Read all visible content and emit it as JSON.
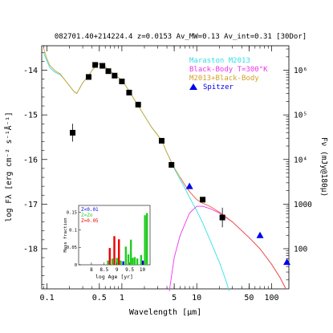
{
  "chart_data": {
    "type": "scatter",
    "title": "082701.40+214224.4  z=0.0153  Av_MW=0.13  Av_int=0.31  [30Dor]",
    "xlabel": "Wavelength [μm]",
    "ylabel": "log Fλ [erg cm⁻² s⁻¹Å⁻¹]",
    "ylabel_right": "Fν (mJy@180μ)",
    "x_scale": "log",
    "xlim": [
      0.085,
      170
    ],
    "ylim": [
      -18.9,
      -13.45
    ],
    "x_ticks": [
      0.1,
      0.5,
      1,
      5,
      10,
      50,
      100
    ],
    "x_tick_labels": [
      "0.1",
      "0.5",
      "1",
      "5",
      "10",
      "50",
      "100"
    ],
    "y_ticks": [
      -14,
      -15,
      -16,
      -17,
      -18
    ],
    "y_tick_labels": [
      "-14",
      "-15",
      "-16",
      "-17",
      "-18"
    ],
    "right_tick_values": [
      1000000,
      100000,
      10000,
      1000,
      100
    ],
    "right_tick_labels": [
      "10⁶",
      "10⁵",
      "10⁴",
      "1000",
      "100"
    ],
    "legend": [
      "Maraston M2013",
      "Black-Body T=300°K",
      "M2013+Black-Body",
      "Spitzer"
    ],
    "legend_position": "top-right",
    "colors": {
      "maraston": "#33e0e6",
      "blackbody": "#ee33ee",
      "combined": "#d4a028",
      "combined_ir": "#ee5533",
      "spitzer": "#0000ee",
      "observed": "#000000"
    },
    "observed": [
      {
        "x": 0.22,
        "y": -15.4,
        "err": 0.2
      },
      {
        "x": 0.36,
        "y": -14.15,
        "err": 0
      },
      {
        "x": 0.44,
        "y": -13.88,
        "err": 0
      },
      {
        "x": 0.55,
        "y": -13.9,
        "err": 0
      },
      {
        "x": 0.66,
        "y": -14.02,
        "err": 0
      },
      {
        "x": 0.8,
        "y": -14.12,
        "err": 0
      },
      {
        "x": 1.0,
        "y": -14.25,
        "err": 0
      },
      {
        "x": 1.25,
        "y": -14.5,
        "err": 0
      },
      {
        "x": 1.65,
        "y": -14.77,
        "err": 0
      },
      {
        "x": 3.4,
        "y": -15.58,
        "err": 0
      },
      {
        "x": 4.6,
        "y": -16.12,
        "err": 0
      },
      {
        "x": 12,
        "y": -16.9,
        "err": 0
      },
      {
        "x": 22,
        "y": -17.3,
        "err": 0.22
      }
    ],
    "spitzer": [
      {
        "x": 8.0,
        "y": -16.6
      },
      {
        "x": 70,
        "y": -17.7
      },
      {
        "x": 160,
        "y": -18.3
      }
    ],
    "maraston_curve": [
      [
        0.09,
        -13.6
      ],
      [
        0.1,
        -13.8
      ],
      [
        0.11,
        -13.95
      ],
      [
        0.13,
        -14.05
      ],
      [
        0.15,
        -14.1
      ],
      [
        0.17,
        -14.2
      ],
      [
        0.2,
        -14.35
      ],
      [
        0.23,
        -14.48
      ],
      [
        0.25,
        -14.52
      ],
      [
        0.27,
        -14.42
      ],
      [
        0.3,
        -14.28
      ],
      [
        0.35,
        -14.15
      ],
      [
        0.4,
        -14.0
      ],
      [
        0.45,
        -13.9
      ],
      [
        0.5,
        -13.85
      ],
      [
        0.6,
        -13.92
      ],
      [
        0.7,
        -14.02
      ],
      [
        0.8,
        -14.1
      ],
      [
        1.0,
        -14.22
      ],
      [
        1.2,
        -14.42
      ],
      [
        1.5,
        -14.68
      ],
      [
        2.0,
        -15.02
      ],
      [
        2.5,
        -15.28
      ],
      [
        3.0,
        -15.45
      ],
      [
        3.5,
        -15.62
      ],
      [
        4.0,
        -15.85
      ],
      [
        5.0,
        -16.2
      ],
      [
        6.0,
        -16.45
      ],
      [
        7.0,
        -16.65
      ],
      [
        8.0,
        -16.85
      ],
      [
        10,
        -17.15
      ],
      [
        12,
        -17.42
      ],
      [
        15,
        -17.8
      ],
      [
        20,
        -18.3
      ],
      [
        25,
        -18.75
      ],
      [
        27,
        -18.95
      ]
    ],
    "blackbody_curve": [
      [
        4.3,
        -18.95
      ],
      [
        5.0,
        -18.2
      ],
      [
        6.0,
        -17.7
      ],
      [
        8.0,
        -17.2
      ],
      [
        10,
        -17.05
      ],
      [
        12,
        -17.05
      ],
      [
        15,
        -17.1
      ],
      [
        20,
        -17.2
      ],
      [
        30,
        -17.4
      ],
      [
        50,
        -17.75
      ],
      [
        70,
        -18.0
      ],
      [
        100,
        -18.35
      ],
      [
        130,
        -18.65
      ],
      [
        155,
        -18.9
      ]
    ],
    "combined_curve": [
      [
        0.09,
        -13.5
      ],
      [
        0.1,
        -13.75
      ],
      [
        0.11,
        -13.9
      ],
      [
        0.13,
        -14.02
      ],
      [
        0.15,
        -14.08
      ],
      [
        0.17,
        -14.2
      ],
      [
        0.2,
        -14.35
      ],
      [
        0.23,
        -14.48
      ],
      [
        0.25,
        -14.52
      ],
      [
        0.27,
        -14.42
      ],
      [
        0.3,
        -14.28
      ],
      [
        0.35,
        -14.15
      ],
      [
        0.4,
        -14.0
      ],
      [
        0.45,
        -13.9
      ],
      [
        0.5,
        -13.85
      ],
      [
        0.6,
        -13.92
      ],
      [
        0.7,
        -14.02
      ],
      [
        0.8,
        -14.1
      ],
      [
        1.0,
        -14.22
      ],
      [
        1.2,
        -14.42
      ],
      [
        1.5,
        -14.68
      ],
      [
        2.0,
        -15.02
      ],
      [
        2.5,
        -15.28
      ],
      [
        3.0,
        -15.45
      ],
      [
        3.5,
        -15.62
      ],
      [
        4.0,
        -15.85
      ],
      [
        5.0,
        -16.18
      ],
      [
        6.0,
        -16.4
      ],
      [
        7.0,
        -16.58
      ],
      [
        8.0,
        -16.72
      ],
      [
        10,
        -16.9
      ],
      [
        12,
        -16.98
      ],
      [
        15,
        -17.05
      ],
      [
        20,
        -17.18
      ],
      [
        30,
        -17.4
      ],
      [
        50,
        -17.75
      ],
      [
        70,
        -18.0
      ],
      [
        100,
        -18.35
      ],
      [
        130,
        -18.65
      ],
      [
        155,
        -18.9
      ]
    ],
    "inset": {
      "xlabel": "log Age [yr]",
      "ylabel": "Mass fraction",
      "xlim": [
        7.5,
        10.3
      ],
      "ylim": [
        0,
        0.17
      ],
      "x_ticks": [
        8,
        8.5,
        9,
        9.5,
        10
      ],
      "x_tick_labels": [
        "8",
        "8.5",
        "9",
        "9.5",
        "10"
      ],
      "y_ticks": [
        0,
        0.05,
        0.1,
        0.15
      ],
      "y_tick_labels": [
        "0",
        "0.05",
        "0.1",
        "0.15"
      ],
      "legend": [
        {
          "label": "Z<0.01",
          "color": "#0000ee"
        },
        {
          "label": "Z=Z⊙",
          "color": "#22cc22"
        },
        {
          "label": "Z=0.05",
          "color": "#ee0000"
        }
      ],
      "bars": [
        {
          "x": 8.65,
          "y": 0.012,
          "color": "#22cc22"
        },
        {
          "x": 8.72,
          "y": 0.048,
          "color": "#ee0000"
        },
        {
          "x": 8.82,
          "y": 0.018,
          "color": "#22cc22"
        },
        {
          "x": 8.9,
          "y": 0.082,
          "color": "#ee0000"
        },
        {
          "x": 9.0,
          "y": 0.02,
          "color": "#22cc22"
        },
        {
          "x": 9.08,
          "y": 0.073,
          "color": "#ee0000"
        },
        {
          "x": 9.15,
          "y": 0.012,
          "color": "#22cc22"
        },
        {
          "x": 9.25,
          "y": 0.01,
          "color": "#0000ee"
        },
        {
          "x": 9.35,
          "y": 0.052,
          "color": "#22cc22"
        },
        {
          "x": 9.45,
          "y": 0.03,
          "color": "#22cc22"
        },
        {
          "x": 9.55,
          "y": 0.072,
          "color": "#22cc22"
        },
        {
          "x": 9.62,
          "y": 0.02,
          "color": "#22cc22"
        },
        {
          "x": 9.7,
          "y": 0.022,
          "color": "#22cc22"
        },
        {
          "x": 9.8,
          "y": 0.018,
          "color": "#22cc22"
        },
        {
          "x": 9.95,
          "y": 0.028,
          "color": "#22cc22"
        },
        {
          "x": 10.02,
          "y": 0.012,
          "color": "#0000ee"
        },
        {
          "x": 10.1,
          "y": 0.142,
          "color": "#22cc22"
        },
        {
          "x": 10.18,
          "y": 0.148,
          "color": "#22cc22"
        }
      ]
    }
  }
}
